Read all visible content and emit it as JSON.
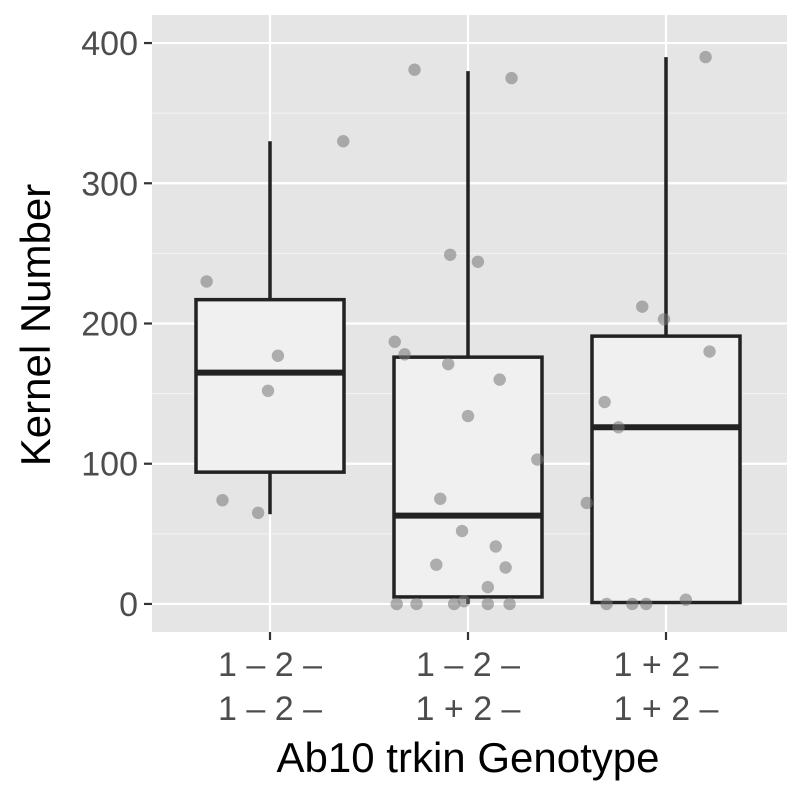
{
  "chart_data": {
    "type": "box",
    "xlabel": "Ab10 trkin Genotype",
    "ylabel": "Kernel Number",
    "ylim": [
      -20,
      420
    ],
    "yticks": [
      0,
      100,
      200,
      300,
      400
    ],
    "grid": true,
    "colors": {
      "panel": "#e5e5e5",
      "grid": "#ffffff",
      "box_fill": "#f0f0f0",
      "box_stroke": "#222222",
      "points": "#777777"
    },
    "categories": [
      {
        "line1": "1 – 2 –",
        "line2": "1 – 2 –"
      },
      {
        "line1": "1 – 2 –",
        "line2": "1 + 2 –"
      },
      {
        "line1": "1 + 2 –",
        "line2": "1 + 2 –"
      }
    ],
    "boxes": [
      {
        "q1": 94,
        "median": 165,
        "q3": 217,
        "whisker_low": 64,
        "whisker_high": 330
      },
      {
        "q1": 5,
        "median": 63,
        "q3": 176,
        "whisker_low": 0,
        "whisker_high": 380
      },
      {
        "q1": 1,
        "median": 126,
        "q3": 191,
        "whisker_low": 0,
        "whisker_high": 390
      }
    ],
    "points": [
      [
        {
          "jitter": -0.32,
          "y": 230
        },
        {
          "jitter": -0.24,
          "y": 74
        },
        {
          "jitter": -0.06,
          "y": 65
        },
        {
          "jitter": -0.01,
          "y": 152
        },
        {
          "jitter": 0.04,
          "y": 177
        },
        {
          "jitter": 0.37,
          "y": 330
        }
      ],
      [
        {
          "jitter": -0.37,
          "y": 187
        },
        {
          "jitter": -0.36,
          "y": 0
        },
        {
          "jitter": -0.32,
          "y": 178
        },
        {
          "jitter": -0.26,
          "y": 0
        },
        {
          "jitter": -0.27,
          "y": 381
        },
        {
          "jitter": -0.16,
          "y": 28
        },
        {
          "jitter": -0.14,
          "y": 75
        },
        {
          "jitter": -0.1,
          "y": 171
        },
        {
          "jitter": -0.09,
          "y": 249
        },
        {
          "jitter": -0.07,
          "y": 0
        },
        {
          "jitter": -0.03,
          "y": 52
        },
        {
          "jitter": -0.02,
          "y": 2
        },
        {
          "jitter": 0.0,
          "y": 134
        },
        {
          "jitter": 0.05,
          "y": 244
        },
        {
          "jitter": 0.1,
          "y": 12
        },
        {
          "jitter": 0.1,
          "y": 0
        },
        {
          "jitter": 0.14,
          "y": 41
        },
        {
          "jitter": 0.16,
          "y": 160
        },
        {
          "jitter": 0.19,
          "y": 26
        },
        {
          "jitter": 0.22,
          "y": 375
        },
        {
          "jitter": 0.21,
          "y": 0
        },
        {
          "jitter": 0.35,
          "y": 103
        }
      ],
      [
        {
          "jitter": -0.4,
          "y": 72
        },
        {
          "jitter": -0.31,
          "y": 144
        },
        {
          "jitter": -0.3,
          "y": 0
        },
        {
          "jitter": -0.24,
          "y": 126
        },
        {
          "jitter": -0.17,
          "y": 0
        },
        {
          "jitter": -0.12,
          "y": 212
        },
        {
          "jitter": -0.1,
          "y": 0
        },
        {
          "jitter": -0.01,
          "y": 203
        },
        {
          "jitter": 0.1,
          "y": 3
        },
        {
          "jitter": 0.2,
          "y": 390
        },
        {
          "jitter": 0.22,
          "y": 180
        }
      ]
    ]
  }
}
